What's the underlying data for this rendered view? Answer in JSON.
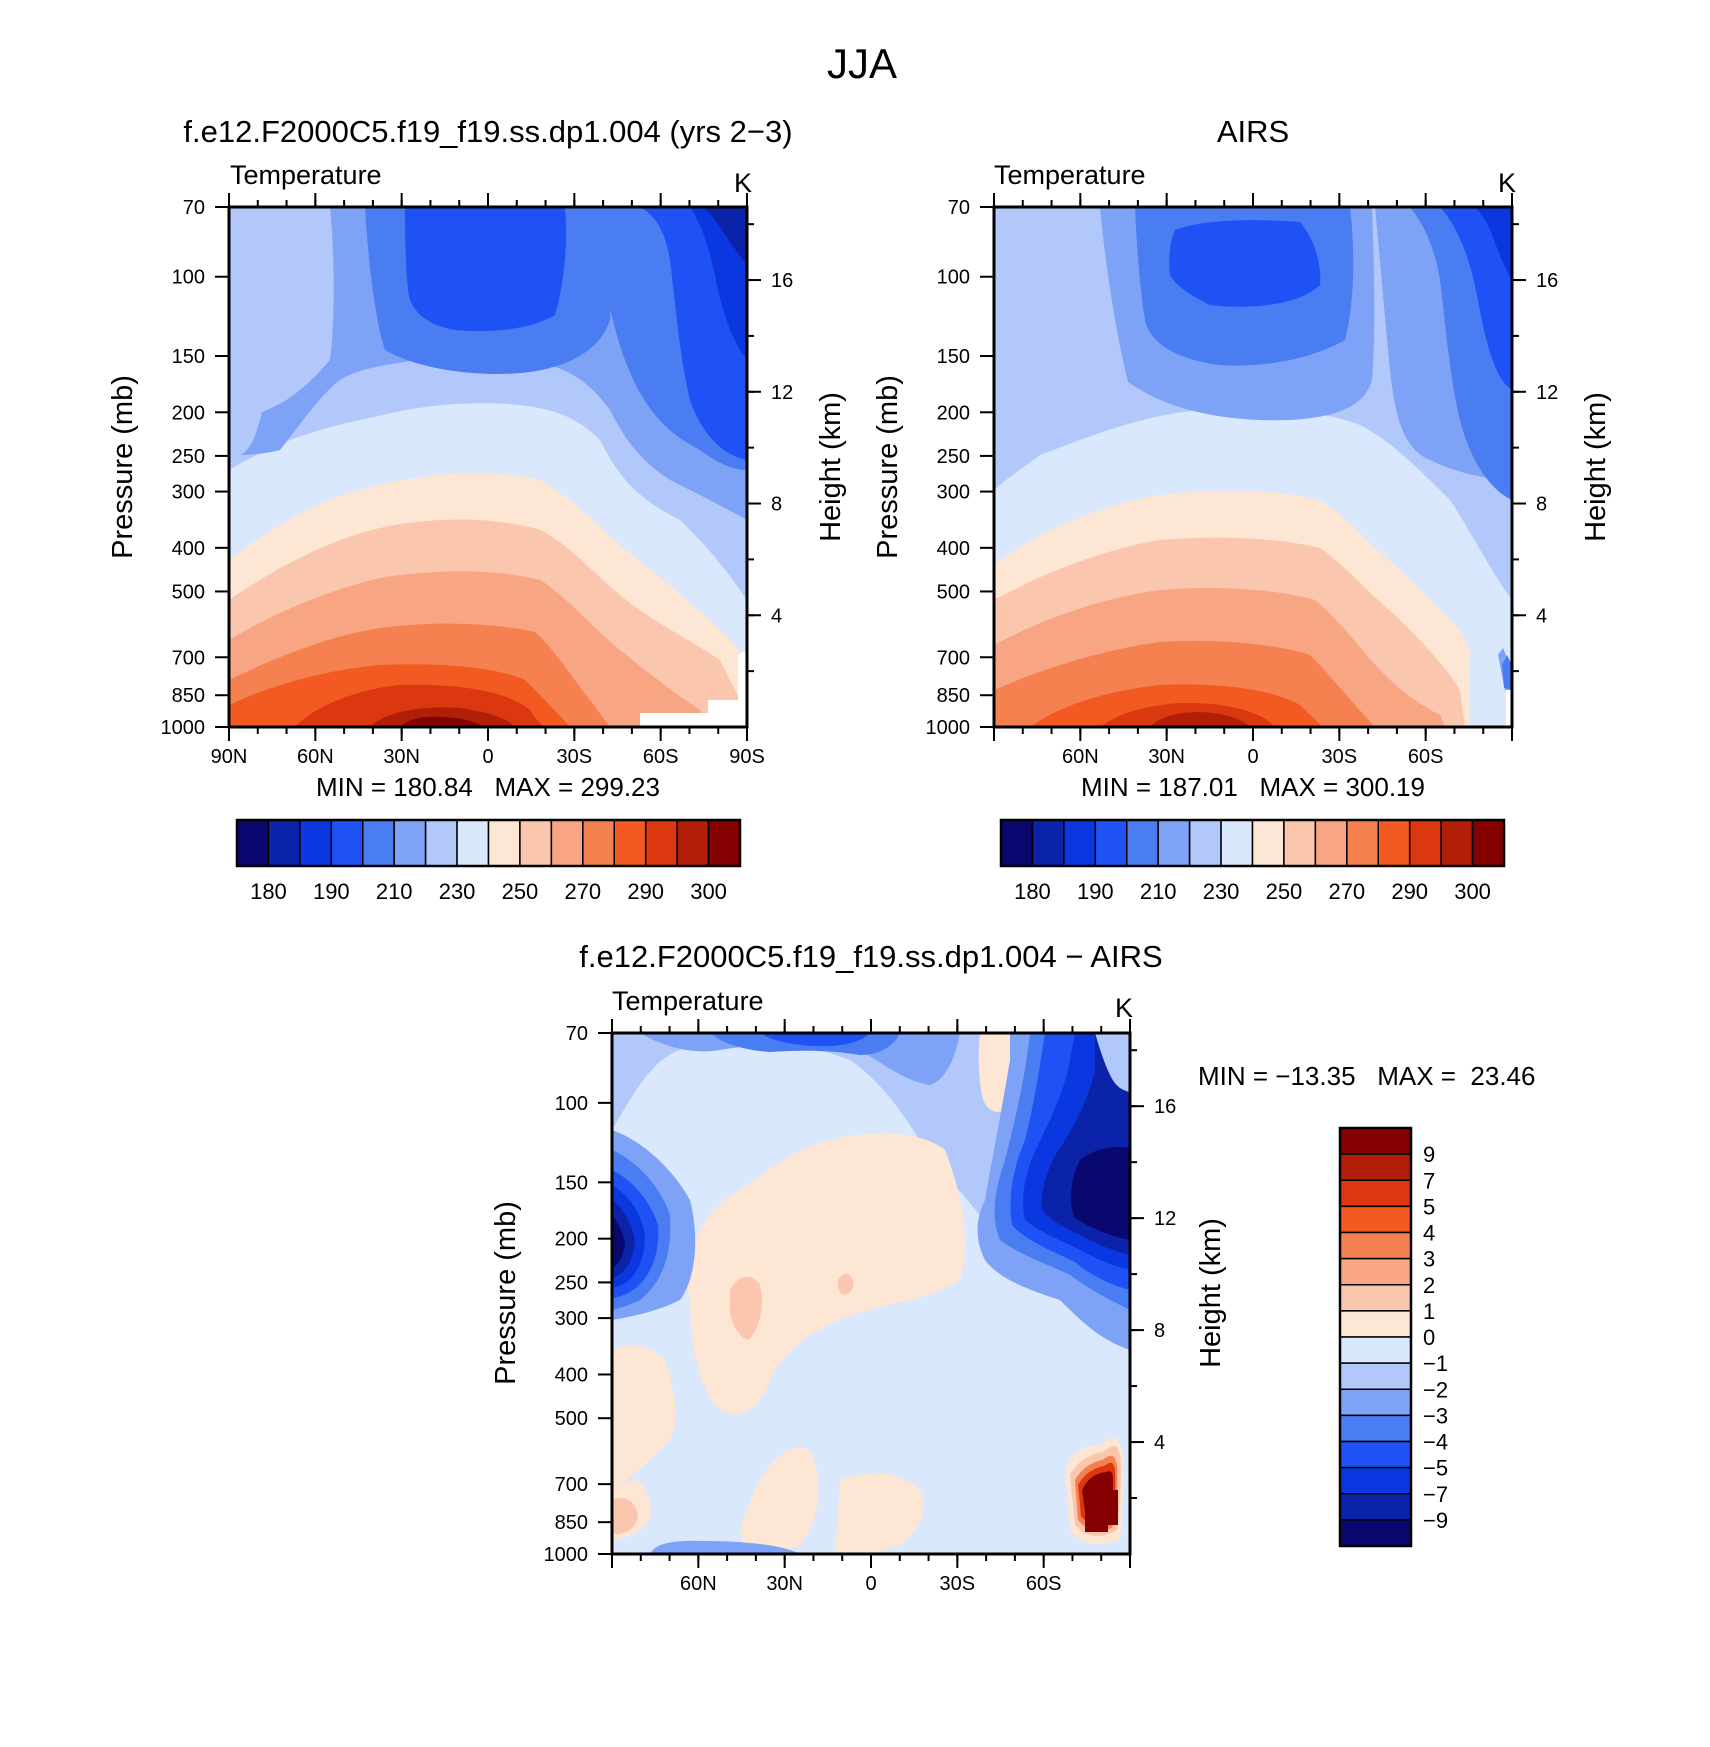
{
  "page_title": "JJA",
  "colors": {
    "abs_palette": [
      "#08086e",
      "#0b23a8",
      "#0a37e0",
      "#1e52f4",
      "#4a7cf2",
      "#7ea2f5",
      "#b2c8fa",
      "#d9e8fc",
      "#fde6d4",
      "#fbc6ae",
      "#f7a583",
      "#f4814f",
      "#f25a22",
      "#db3810",
      "#b21f08",
      "#850000"
    ],
    "diff_palette": [
      "#08086e",
      "#0b23a8",
      "#0a37e0",
      "#1e52f4",
      "#4a7cf2",
      "#7ea2f5",
      "#b2c8fa",
      "#d9e8fc",
      "#fde6d4",
      "#fbc6ae",
      "#f7a583",
      "#f4814f",
      "#f25a22",
      "#db3810",
      "#b21f08",
      "#850000"
    ]
  },
  "chart_data": [
    {
      "type": "heatmap",
      "title": "f.e12.F2000C5.f19_f19.ss.dp1.004 (yrs 2−3)",
      "left_string": "Temperature",
      "right_string": "K",
      "ylabel": "Pressure (mb)",
      "y2label": "Height (km)",
      "x_tick_labels": [
        "90N",
        "60N",
        "30N",
        "0",
        "30S",
        "60S",
        "90S"
      ],
      "x_tick_values": [
        90,
        60,
        30,
        0,
        -30,
        -60,
        -90
      ],
      "y_tick_labels": [
        "70",
        "100",
        "150",
        "200",
        "250",
        "300",
        "400",
        "500",
        "700",
        "850",
        "1000"
      ],
      "y_tick_values": [
        70,
        100,
        150,
        200,
        250,
        300,
        400,
        500,
        700,
        850,
        1000
      ],
      "y2_tick_labels": [
        "16",
        "12",
        "8",
        "4"
      ],
      "y2_tick_values": [
        16,
        12,
        8,
        4
      ],
      "xlim": [
        90,
        -90
      ],
      "ylim": [
        70,
        1000
      ],
      "y_scale": "log",
      "min_max_text": "MIN = 180.84   MAX = 299.23",
      "colorbar_labels": [
        "180",
        "190",
        "210",
        "230",
        "250",
        "270",
        "290",
        "300"
      ],
      "levels": [
        180,
        185,
        190,
        200,
        210,
        220,
        230,
        240,
        250,
        260,
        270,
        280,
        290,
        295,
        300
      ],
      "colormap": "abs_palette"
    },
    {
      "type": "heatmap",
      "title": "AIRS",
      "left_string": "Temperature",
      "right_string": "K",
      "ylabel": "Pressure (mb)",
      "y2label": "Height (km)",
      "x_tick_labels": [
        "60N",
        "30N",
        "0",
        "30S",
        "60S"
      ],
      "x_tick_values": [
        60,
        30,
        0,
        -30,
        -60
      ],
      "y_tick_labels": [
        "70",
        "100",
        "150",
        "200",
        "250",
        "300",
        "400",
        "500",
        "700",
        "850",
        "1000"
      ],
      "y_tick_values": [
        70,
        100,
        150,
        200,
        250,
        300,
        400,
        500,
        700,
        850,
        1000
      ],
      "y2_tick_labels": [
        "16",
        "12",
        "8",
        "4"
      ],
      "y2_tick_values": [
        16,
        12,
        8,
        4
      ],
      "xlim": [
        90,
        -90
      ],
      "ylim": [
        70,
        1000
      ],
      "y_scale": "log",
      "min_max_text": "MIN = 187.01   MAX = 300.19",
      "colorbar_labels": [
        "180",
        "190",
        "210",
        "230",
        "250",
        "270",
        "290",
        "300"
      ],
      "levels": [
        180,
        185,
        190,
        200,
        210,
        220,
        230,
        240,
        250,
        260,
        270,
        280,
        290,
        295,
        300
      ],
      "colormap": "abs_palette"
    },
    {
      "type": "heatmap",
      "title": "f.e12.F2000C5.f19_f19.ss.dp1.004 − AIRS",
      "left_string": "Temperature",
      "right_string": "K",
      "ylabel": "Pressure (mb)",
      "y2label": "Height (km)",
      "x_tick_labels": [
        "60N",
        "30N",
        "0",
        "30S",
        "60S"
      ],
      "x_tick_values": [
        60,
        30,
        0,
        -30,
        -60
      ],
      "y_tick_labels": [
        "70",
        "100",
        "150",
        "200",
        "250",
        "300",
        "400",
        "500",
        "700",
        "850",
        "1000"
      ],
      "y_tick_values": [
        70,
        100,
        150,
        200,
        250,
        300,
        400,
        500,
        700,
        850,
        1000
      ],
      "y2_tick_labels": [
        "16",
        "12",
        "8",
        "4"
      ],
      "y2_tick_values": [
        16,
        12,
        8,
        4
      ],
      "xlim": [
        90,
        -90
      ],
      "ylim": [
        70,
        1000
      ],
      "y_scale": "log",
      "min_max_text": "MIN = −13.35   MAX =  23.46",
      "colorbar_labels": [
        "9",
        "7",
        "5",
        "4",
        "3",
        "2",
        "1",
        "0",
        "−1",
        "−2",
        "−3",
        "−4",
        "−5",
        "−7",
        "−9"
      ],
      "levels": [
        -9,
        -7,
        -5,
        -4,
        -3,
        -2,
        -1,
        0,
        1,
        2,
        3,
        4,
        5,
        7,
        9
      ],
      "colormap": "diff_palette"
    }
  ]
}
